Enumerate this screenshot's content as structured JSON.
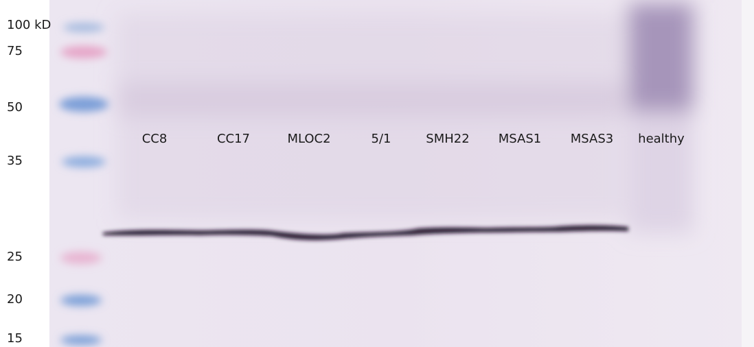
{
  "markers": [
    "100 kD",
    "75",
    "50",
    "35",
    "25",
    "20",
    "15"
  ],
  "lanes": [
    "CC8",
    "CC17",
    "MLOC2",
    "5/1",
    "SMH22",
    "MSAS1",
    "MSAS3",
    "healthy"
  ]
}
